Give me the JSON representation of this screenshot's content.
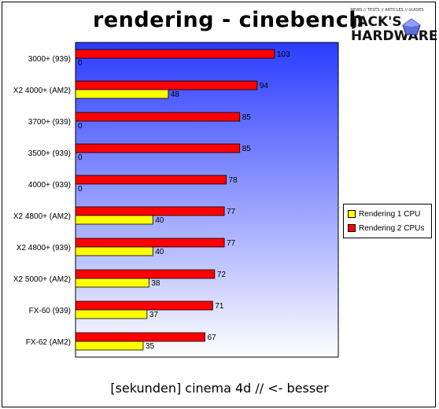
{
  "title": "rendering - cinebench",
  "logo": {
    "tagline": "NEWS // TESTS // ARTICLES // GUIDES",
    "line1": "JACK'S",
    "line2": "HARDWARE",
    "icon": "pentagon-gem-icon"
  },
  "footer": "[sekunden] cinema 4d // <- besser",
  "colors": {
    "series1": "#ffff00",
    "series2": "#ff0000",
    "background_top": "#2a3cff",
    "background_bottom": "#ffffff"
  },
  "chart_data": {
    "type": "bar",
    "orientation": "horizontal",
    "title": "rendering - cinebench",
    "xlabel": "[sekunden] cinema 4d // <- besser",
    "ylabel": "",
    "categories": [
      "3000+ (939)",
      "X2 4000+ (AM2)",
      "3700+ (939)",
      "3500+ (939)",
      "4000+ (939)",
      "X2 4800+ (AM2)",
      "X2 4800+ (939)",
      "X2 5000+ (AM2)",
      "FX-60 (939)",
      "FX-62 (AM2)"
    ],
    "series": [
      {
        "name": "Rendering 1 CPU",
        "values": [
          0,
          48,
          0,
          0,
          0,
          40,
          40,
          38,
          37,
          35
        ]
      },
      {
        "name": "Rendering 2 CPUs",
        "values": [
          103,
          94,
          85,
          85,
          78,
          77,
          77,
          72,
          71,
          67
        ]
      }
    ],
    "xlim": [
      0,
      136
    ],
    "grid": false,
    "legend_position": "right"
  }
}
